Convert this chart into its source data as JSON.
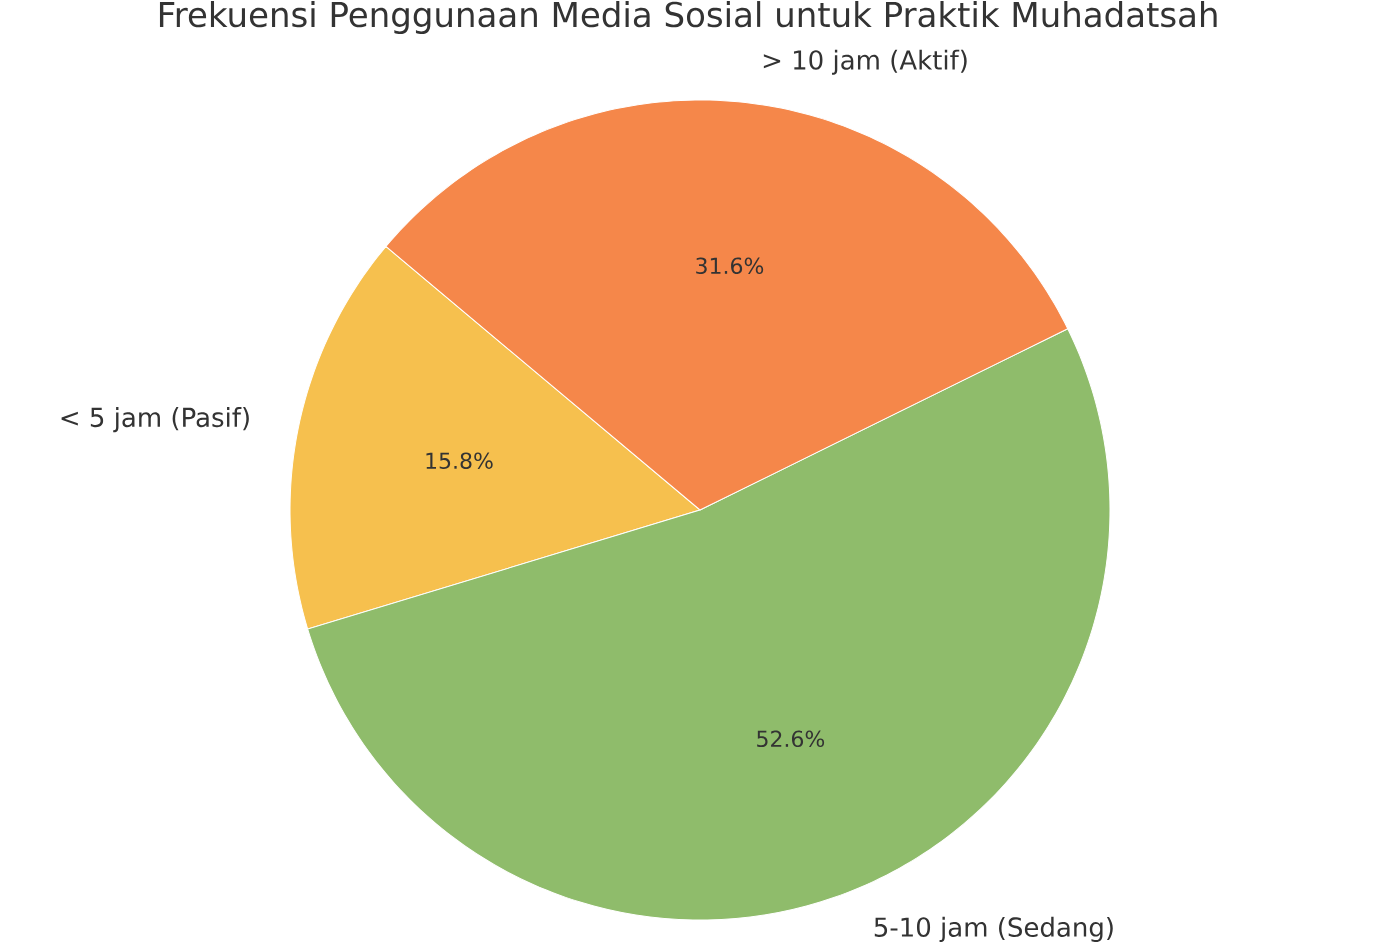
{
  "chart_data": {
    "type": "pie",
    "title": "Frekuensi Penggunaan Media Sosial untuk Praktik Muhadatsah",
    "categories": [
      "< 5 jam (Pasif)",
      "5-10 jam (Sedang)",
      "> 10 jam (Aktif)"
    ],
    "values": [
      15.8,
      52.6,
      31.6
    ],
    "colors": [
      "#f6c04e",
      "#8fbc6b",
      "#f5874a"
    ],
    "value_labels": [
      "15.8%",
      "52.6%",
      "31.6%"
    ]
  }
}
